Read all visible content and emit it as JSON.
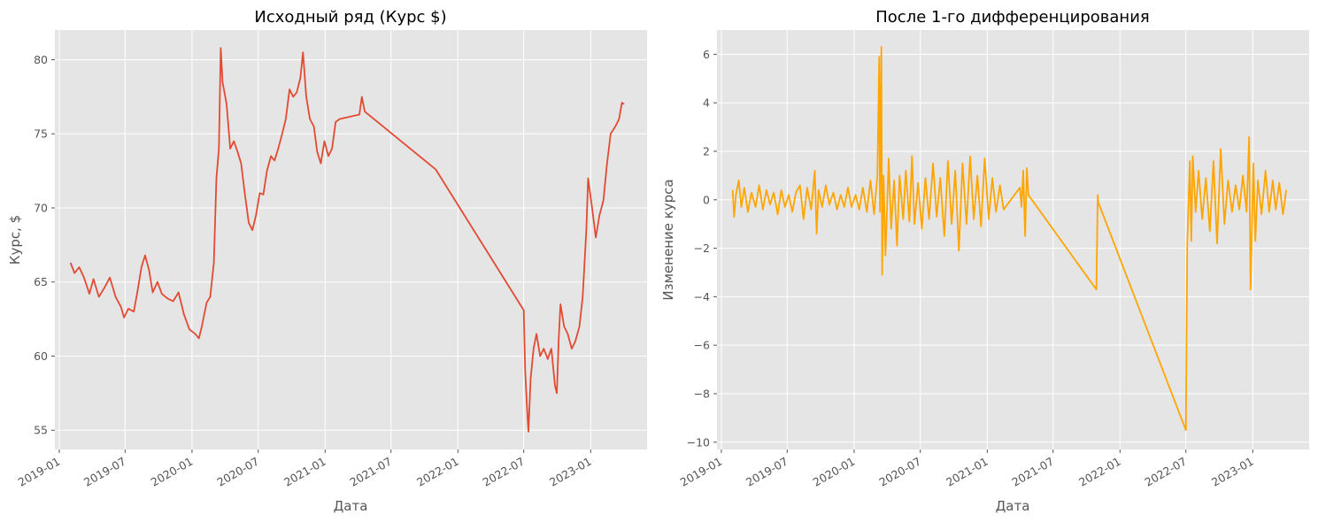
{
  "chart_data": [
    {
      "type": "line",
      "title": "Исходный ряд (Курс $)",
      "xlabel": "Дата",
      "ylabel": "Курс, $",
      "xlim": [
        "2018-12-20",
        "2023-06-05"
      ],
      "ylim": [
        53.7,
        82.0
      ],
      "x_ticks": [
        "2019-01",
        "2019-07",
        "2020-01",
        "2020-07",
        "2021-01",
        "2021-07",
        "2022-01",
        "2022-07",
        "2023-01"
      ],
      "y_ticks": [
        55,
        60,
        65,
        70,
        75,
        80
      ],
      "grid": true,
      "series": [
        {
          "color": "#E24A33",
          "points": [
            [
              "2019-02-01",
              66.3
            ],
            [
              "2019-02-12",
              65.6
            ],
            [
              "2019-02-25",
              66.0
            ],
            [
              "2019-03-10",
              65.3
            ],
            [
              "2019-03-25",
              64.2
            ],
            [
              "2019-04-05",
              65.2
            ],
            [
              "2019-04-20",
              64.0
            ],
            [
              "2019-05-05",
              64.6
            ],
            [
              "2019-05-20",
              65.3
            ],
            [
              "2019-06-05",
              64.0
            ],
            [
              "2019-06-20",
              63.3
            ],
            [
              "2019-06-28",
              62.6
            ],
            [
              "2019-07-10",
              63.2
            ],
            [
              "2019-07-25",
              63.0
            ],
            [
              "2019-08-05",
              64.5
            ],
            [
              "2019-08-15",
              66.0
            ],
            [
              "2019-08-25",
              66.8
            ],
            [
              "2019-09-05",
              65.8
            ],
            [
              "2019-09-15",
              64.3
            ],
            [
              "2019-09-28",
              65.0
            ],
            [
              "2019-10-10",
              64.2
            ],
            [
              "2019-10-25",
              63.9
            ],
            [
              "2019-11-10",
              63.7
            ],
            [
              "2019-11-25",
              64.3
            ],
            [
              "2019-12-10",
              62.8
            ],
            [
              "2019-12-25",
              61.8
            ],
            [
              "2020-01-10",
              61.5
            ],
            [
              "2020-01-20",
              61.2
            ],
            [
              "2020-01-28",
              62.0
            ],
            [
              "2020-02-10",
              63.6
            ],
            [
              "2020-02-20",
              64.0
            ],
            [
              "2020-03-01",
              66.3
            ],
            [
              "2020-03-08",
              72.0
            ],
            [
              "2020-03-15",
              74.0
            ],
            [
              "2020-03-20",
              80.8
            ],
            [
              "2020-03-25",
              78.5
            ],
            [
              "2020-04-05",
              77.0
            ],
            [
              "2020-04-15",
              74.0
            ],
            [
              "2020-04-25",
              74.5
            ],
            [
              "2020-05-05",
              73.8
            ],
            [
              "2020-05-15",
              73.0
            ],
            [
              "2020-05-25",
              71.0
            ],
            [
              "2020-06-05",
              69.0
            ],
            [
              "2020-06-15",
              68.5
            ],
            [
              "2020-06-25",
              69.5
            ],
            [
              "2020-07-05",
              71.0
            ],
            [
              "2020-07-15",
              70.9
            ],
            [
              "2020-07-25",
              72.5
            ],
            [
              "2020-08-05",
              73.5
            ],
            [
              "2020-08-15",
              73.2
            ],
            [
              "2020-08-25",
              74.0
            ],
            [
              "2020-09-05",
              75.0
            ],
            [
              "2020-09-15",
              76.0
            ],
            [
              "2020-09-25",
              78.0
            ],
            [
              "2020-10-05",
              77.5
            ],
            [
              "2020-10-15",
              77.8
            ],
            [
              "2020-10-25",
              78.8
            ],
            [
              "2020-11-01",
              80.5
            ],
            [
              "2020-11-10",
              77.5
            ],
            [
              "2020-11-20",
              76.0
            ],
            [
              "2020-12-01",
              75.5
            ],
            [
              "2020-12-10",
              73.8
            ],
            [
              "2020-12-20",
              73.0
            ],
            [
              "2020-12-30",
              74.5
            ],
            [
              "2021-01-10",
              73.5
            ],
            [
              "2021-01-20",
              74.0
            ],
            [
              "2021-01-30",
              75.8
            ],
            [
              "2021-02-10",
              76.0
            ],
            [
              "2021-04-05",
              76.3
            ],
            [
              "2021-04-12",
              77.5
            ],
            [
              "2021-04-20",
              76.5
            ],
            [
              "2021-11-01",
              72.6
            ],
            [
              "2022-07-01",
              63.1
            ],
            [
              "2022-07-05",
              59.0
            ],
            [
              "2022-07-10",
              56.5
            ],
            [
              "2022-07-14",
              54.9
            ],
            [
              "2022-07-20",
              58.5
            ],
            [
              "2022-07-28",
              60.5
            ],
            [
              "2022-08-05",
              61.5
            ],
            [
              "2022-08-15",
              60.0
            ],
            [
              "2022-08-25",
              60.5
            ],
            [
              "2022-09-05",
              59.8
            ],
            [
              "2022-09-15",
              60.5
            ],
            [
              "2022-09-25",
              58.0
            ],
            [
              "2022-09-30",
              57.5
            ],
            [
              "2022-10-05",
              61.0
            ],
            [
              "2022-10-10",
              63.5
            ],
            [
              "2022-10-20",
              62.0
            ],
            [
              "2022-10-30",
              61.5
            ],
            [
              "2022-11-10",
              60.5
            ],
            [
              "2022-11-20",
              61.0
            ],
            [
              "2022-12-01",
              62.0
            ],
            [
              "2022-12-10",
              64.0
            ],
            [
              "2022-12-20",
              68.5
            ],
            [
              "2022-12-25",
              72.0
            ],
            [
              "2023-01-05",
              70.0
            ],
            [
              "2023-01-15",
              68.0
            ],
            [
              "2023-01-25",
              69.5
            ],
            [
              "2023-02-05",
              70.5
            ],
            [
              "2023-02-15",
              73.0
            ],
            [
              "2023-02-25",
              75.0
            ],
            [
              "2023-03-10",
              75.5
            ],
            [
              "2023-03-20",
              76.0
            ],
            [
              "2023-03-28",
              77.1
            ],
            [
              "2023-04-03",
              77.0
            ]
          ]
        }
      ]
    },
    {
      "type": "line",
      "title": "После 1-го дифференцирования",
      "xlabel": "Дата",
      "ylabel": "Изменение курса",
      "xlim": [
        "2018-12-20",
        "2023-06-05"
      ],
      "ylim": [
        -10.3,
        7.0
      ],
      "x_ticks": [
        "2019-01",
        "2019-07",
        "2020-01",
        "2020-07",
        "2021-01",
        "2021-07",
        "2022-01",
        "2022-07",
        "2023-01"
      ],
      "y_ticks": [
        -10,
        -8,
        -6,
        -4,
        -2,
        0,
        2,
        4,
        6
      ],
      "grid": true,
      "series": [
        {
          "color": "#FFA500",
          "points": [
            [
              "2019-02-01",
              0.4
            ],
            [
              "2019-02-05",
              -0.7
            ],
            [
              "2019-02-10",
              0.2
            ],
            [
              "2019-02-18",
              0.8
            ],
            [
              "2019-02-25",
              -0.3
            ],
            [
              "2019-03-05",
              0.5
            ],
            [
              "2019-03-15",
              -0.5
            ],
            [
              "2019-03-25",
              0.3
            ],
            [
              "2019-04-05",
              -0.3
            ],
            [
              "2019-04-15",
              0.6
            ],
            [
              "2019-04-25",
              -0.4
            ],
            [
              "2019-05-05",
              0.4
            ],
            [
              "2019-05-15",
              -0.2
            ],
            [
              "2019-05-25",
              0.3
            ],
            [
              "2019-06-05",
              -0.6
            ],
            [
              "2019-06-15",
              0.4
            ],
            [
              "2019-06-25",
              -0.3
            ],
            [
              "2019-07-05",
              0.2
            ],
            [
              "2019-07-15",
              -0.5
            ],
            [
              "2019-07-25",
              0.3
            ],
            [
              "2019-08-05",
              0.6
            ],
            [
              "2019-08-15",
              -0.8
            ],
            [
              "2019-08-25",
              0.5
            ],
            [
              "2019-09-05",
              -0.4
            ],
            [
              "2019-09-15",
              1.2
            ],
            [
              "2019-09-20",
              -1.4
            ],
            [
              "2019-09-25",
              0.4
            ],
            [
              "2019-10-05",
              -0.3
            ],
            [
              "2019-10-15",
              0.6
            ],
            [
              "2019-10-25",
              -0.2
            ],
            [
              "2019-11-05",
              0.3
            ],
            [
              "2019-11-15",
              -0.4
            ],
            [
              "2019-11-25",
              0.2
            ],
            [
              "2019-12-05",
              -0.3
            ],
            [
              "2019-12-15",
              0.5
            ],
            [
              "2019-12-25",
              -0.3
            ],
            [
              "2020-01-05",
              0.2
            ],
            [
              "2020-01-15",
              -0.4
            ],
            [
              "2020-01-25",
              0.5
            ],
            [
              "2020-02-05",
              -0.5
            ],
            [
              "2020-02-15",
              0.8
            ],
            [
              "2020-02-25",
              -0.6
            ],
            [
              "2020-03-05",
              1.0
            ],
            [
              "2020-03-10",
              5.9
            ],
            [
              "2020-03-12",
              -0.5
            ],
            [
              "2020-03-16",
              6.3
            ],
            [
              "2020-03-18",
              -3.1
            ],
            [
              "2020-03-22",
              1.0
            ],
            [
              "2020-03-27",
              -2.3
            ],
            [
              "2020-04-05",
              1.7
            ],
            [
              "2020-04-12",
              -1.2
            ],
            [
              "2020-04-20",
              0.8
            ],
            [
              "2020-04-28",
              -1.9
            ],
            [
              "2020-05-05",
              1.0
            ],
            [
              "2020-05-15",
              -0.8
            ],
            [
              "2020-05-22",
              1.2
            ],
            [
              "2020-06-01",
              -0.9
            ],
            [
              "2020-06-08",
              1.8
            ],
            [
              "2020-06-15",
              -1.0
            ],
            [
              "2020-06-25",
              0.7
            ],
            [
              "2020-07-05",
              -1.2
            ],
            [
              "2020-07-15",
              0.9
            ],
            [
              "2020-07-25",
              -0.8
            ],
            [
              "2020-08-05",
              1.5
            ],
            [
              "2020-08-15",
              -0.7
            ],
            [
              "2020-08-25",
              0.9
            ],
            [
              "2020-09-05",
              -1.5
            ],
            [
              "2020-09-15",
              1.6
            ],
            [
              "2020-09-25",
              -1.0
            ],
            [
              "2020-10-05",
              1.2
            ],
            [
              "2020-10-15",
              -2.1
            ],
            [
              "2020-10-25",
              1.5
            ],
            [
              "2020-11-05",
              -1.0
            ],
            [
              "2020-11-15",
              1.8
            ],
            [
              "2020-11-25",
              -0.8
            ],
            [
              "2020-12-05",
              1.0
            ],
            [
              "2020-12-15",
              -1.1
            ],
            [
              "2020-12-25",
              1.7
            ],
            [
              "2021-01-05",
              -0.8
            ],
            [
              "2021-01-15",
              0.9
            ],
            [
              "2021-01-25",
              -0.5
            ],
            [
              "2021-02-05",
              0.6
            ],
            [
              "2021-02-15",
              -0.4
            ],
            [
              "2021-04-01",
              0.5
            ],
            [
              "2021-04-05",
              -0.3
            ],
            [
              "2021-04-10",
              1.2
            ],
            [
              "2021-04-15",
              -1.5
            ],
            [
              "2021-04-20",
              1.3
            ],
            [
              "2021-04-24",
              0.2
            ],
            [
              "2021-10-28",
              -3.7
            ],
            [
              "2021-11-01",
              0.2
            ],
            [
              "2021-11-02",
              -0.1
            ],
            [
              "2022-07-01",
              -9.5
            ],
            [
              "2022-07-05",
              -1.8
            ],
            [
              "2022-07-08",
              -0.3
            ],
            [
              "2022-07-12",
              1.6
            ],
            [
              "2022-07-16",
              -1.7
            ],
            [
              "2022-07-20",
              1.8
            ],
            [
              "2022-07-28",
              -0.5
            ],
            [
              "2022-08-05",
              1.2
            ],
            [
              "2022-08-15",
              -0.8
            ],
            [
              "2022-08-25",
              0.9
            ],
            [
              "2022-09-05",
              -1.3
            ],
            [
              "2022-09-15",
              1.6
            ],
            [
              "2022-09-25",
              -1.8
            ],
            [
              "2022-10-05",
              2.1
            ],
            [
              "2022-10-15",
              -1.0
            ],
            [
              "2022-10-25",
              0.8
            ],
            [
              "2022-11-05",
              -0.5
            ],
            [
              "2022-11-15",
              0.6
            ],
            [
              "2022-11-25",
              -0.4
            ],
            [
              "2022-12-05",
              1.0
            ],
            [
              "2022-12-15",
              -0.5
            ],
            [
              "2022-12-22",
              2.6
            ],
            [
              "2022-12-26",
              -3.7
            ],
            [
              "2023-01-03",
              1.5
            ],
            [
              "2023-01-08",
              -1.7
            ],
            [
              "2023-01-15",
              0.8
            ],
            [
              "2023-01-25",
              -0.6
            ],
            [
              "2023-02-05",
              1.2
            ],
            [
              "2023-02-15",
              -0.5
            ],
            [
              "2023-02-25",
              0.8
            ],
            [
              "2023-03-05",
              -0.4
            ],
            [
              "2023-03-15",
              0.7
            ],
            [
              "2023-03-25",
              -0.6
            ],
            [
              "2023-04-03",
              0.4
            ]
          ]
        }
      ]
    }
  ]
}
